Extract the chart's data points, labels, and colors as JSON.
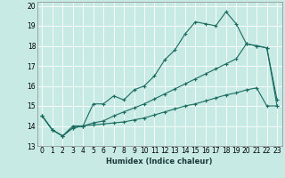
{
  "xlabel": "Humidex (Indice chaleur)",
  "xlim": [
    -0.5,
    23.5
  ],
  "ylim": [
    13,
    20.2
  ],
  "yticks": [
    13,
    14,
    15,
    16,
    17,
    18,
    19,
    20
  ],
  "xticks": [
    0,
    1,
    2,
    3,
    4,
    5,
    6,
    7,
    8,
    9,
    10,
    11,
    12,
    13,
    14,
    15,
    16,
    17,
    18,
    19,
    20,
    21,
    22,
    23
  ],
  "bg_color": "#c8eae4",
  "line_color": "#1a6b60",
  "series1_x": [
    0,
    1,
    2,
    3,
    4,
    5,
    6,
    7,
    8,
    9,
    10,
    11,
    12,
    13,
    14,
    15,
    16,
    17,
    18,
    19,
    20,
    21,
    22,
    23
  ],
  "series1_y": [
    14.5,
    13.8,
    13.5,
    13.9,
    14.0,
    15.1,
    15.1,
    15.5,
    15.3,
    15.8,
    16.0,
    16.5,
    17.3,
    17.8,
    18.6,
    19.2,
    19.1,
    19.0,
    19.7,
    19.1,
    18.1,
    18.0,
    17.9,
    15.3
  ],
  "series2_x": [
    0,
    1,
    2,
    3,
    4,
    5,
    6,
    7,
    8,
    9,
    10,
    11,
    12,
    13,
    14,
    15,
    16,
    17,
    18,
    19,
    20,
    21,
    22,
    23
  ],
  "series2_y": [
    14.5,
    13.8,
    13.5,
    13.9,
    14.0,
    14.05,
    14.1,
    14.15,
    14.2,
    14.3,
    14.4,
    14.55,
    14.7,
    14.85,
    15.0,
    15.1,
    15.25,
    15.4,
    15.55,
    15.65,
    15.8,
    15.9,
    15.0,
    15.0
  ],
  "series3_x": [
    0,
    1,
    2,
    3,
    4,
    5,
    6,
    7,
    8,
    9,
    10,
    11,
    12,
    13,
    14,
    15,
    16,
    17,
    18,
    19,
    20,
    21,
    22,
    23
  ],
  "series3_y": [
    14.5,
    13.8,
    13.5,
    14.0,
    14.0,
    14.15,
    14.25,
    14.5,
    14.7,
    14.9,
    15.1,
    15.35,
    15.6,
    15.85,
    16.1,
    16.35,
    16.6,
    16.85,
    17.1,
    17.35,
    18.1,
    18.0,
    17.9,
    15.0
  ],
  "xlabel_fontsize": 6,
  "tick_fontsize": 5.5
}
